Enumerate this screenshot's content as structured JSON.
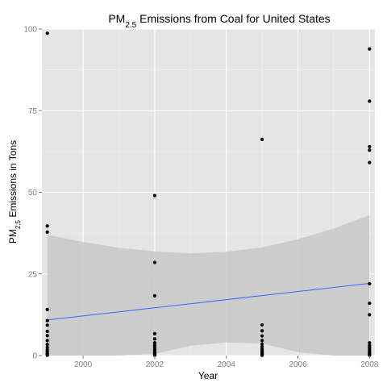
{
  "chart_data": {
    "type": "scatter",
    "title": {
      "main": "PM",
      "sub": "2.5",
      "rest": " Emissions from Coal for United States"
    },
    "xlabel": "Year",
    "ylabel": {
      "main": "PM",
      "sub": "2.5",
      "rest": " Emissions in Tons"
    },
    "xlim": [
      1998.85,
      2008.15
    ],
    "ylim": [
      0,
      100
    ],
    "x_ticks": [
      2000,
      2002,
      2004,
      2006,
      2008
    ],
    "y_ticks": [
      0,
      25,
      50,
      75,
      100
    ],
    "grid": true,
    "legend": "none",
    "colors": {
      "panel": "#e5e5e5",
      "grid_major": "#ffffff",
      "grid_minor": "#f2f2f2",
      "points": "#000000",
      "trend": "#3366ff",
      "ribbon": "#c8c8c8"
    },
    "series": [
      {
        "x": 1999,
        "y": [
          98.7,
          39.7,
          37.8,
          14.1,
          10.7,
          9.3,
          7.4,
          6.1,
          4.6,
          3.4,
          2.5,
          1.8,
          1.2,
          0.7,
          0.3,
          0.1
        ]
      },
      {
        "x": 2002,
        "y": [
          49.0,
          28.5,
          18.3,
          6.7,
          5.1,
          3.9,
          3.1,
          2.4,
          1.8,
          1.3,
          0.9,
          0.6,
          0.3,
          0.1
        ]
      },
      {
        "x": 2005,
        "y": [
          66.2,
          9.4,
          7.6,
          6.0,
          4.6,
          3.5,
          2.7,
          2.0,
          1.5,
          1.1,
          0.7,
          0.4,
          0.2,
          0.05
        ]
      },
      {
        "x": 2008,
        "y": [
          93.9,
          77.9,
          64.0,
          62.9,
          59.1,
          22.0,
          16.0,
          12.5,
          3.9,
          3.1,
          2.5,
          1.9,
          1.4,
          1.0,
          0.6,
          0.3,
          0.1
        ]
      }
    ],
    "trend": {
      "x": [
        1999,
        2008
      ],
      "y": [
        10.9,
        22.1
      ],
      "band_x": [
        1999,
        2000,
        2001,
        2002,
        2003,
        2004,
        2005,
        2006,
        2007,
        2008
      ],
      "band_upper": [
        37.0,
        34.8,
        33.0,
        31.9,
        31.3,
        31.8,
        33.1,
        35.6,
        38.9,
        43.0
      ],
      "band_lower": [
        -15.2,
        -9.0,
        -3.2,
        0.5,
        3.0,
        4.0,
        3.7,
        1.0,
        -4.0,
        -10.0
      ]
    }
  }
}
